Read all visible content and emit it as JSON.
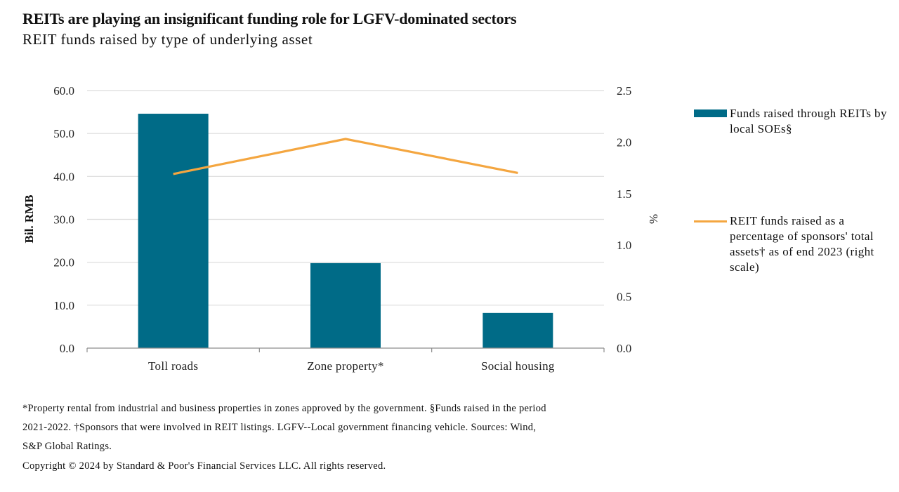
{
  "header": {
    "title": "REITs are playing an insignificant funding role for LGFV-dominated sectors",
    "subtitle": "REIT funds raised by type of underlying asset"
  },
  "chart_data": {
    "type": "bar",
    "title": "REITs are playing an insignificant funding role for LGFV-dominated sectors",
    "subtitle": "REIT funds raised by type of underlying asset",
    "categories": [
      "Toll roads",
      "Zone property*",
      "Social housing"
    ],
    "series": [
      {
        "name": "Funds raised through REITs  by local SOEs§",
        "type": "bar",
        "axis": "left",
        "color": "#006b87",
        "values": [
          54.6,
          19.8,
          8.2
        ]
      },
      {
        "name": "REIT funds raised as a percentage of sponsors' total assets† as of end 2023 (right scale)",
        "type": "line",
        "axis": "right",
        "color": "#f4a640",
        "values": [
          1.69,
          2.03,
          1.7
        ]
      }
    ],
    "ylabel": "Bil. RMB",
    "ylim": [
      0,
      60
    ],
    "yticks": [
      "0.0",
      "10.0",
      "20.0",
      "30.0",
      "40.0",
      "50.0",
      "60.0"
    ],
    "y2label": "%",
    "y2lim": [
      0,
      2.5
    ],
    "y2ticks": [
      "0.0",
      "0.5",
      "1.0",
      "1.5",
      "2.0",
      "2.5"
    ],
    "grid": true,
    "legend_position": "right"
  },
  "legend": [
    {
      "label": "Funds raised through REITs  by local SOEs§",
      "color": "#006b87",
      "kind": "bar"
    },
    {
      "label": "REIT funds raised as a percentage of sponsors' total assets† as of end 2023 (right scale)",
      "color": "#f4a640",
      "kind": "line"
    }
  ],
  "footnotes": {
    "line1": "*Property rental from industrial and business properties in zones approved by the government. §Funds raised in the period",
    "line2": "2021-2022. †Sponsors that were involved in REIT listings. LGFV--Local government financing vehicle. Sources: Wind,",
    "line3": "S&P Global Ratings.",
    "copyright": "Copyright © 2024 by Standard & Poor's Financial Services LLC. All rights reserved."
  }
}
